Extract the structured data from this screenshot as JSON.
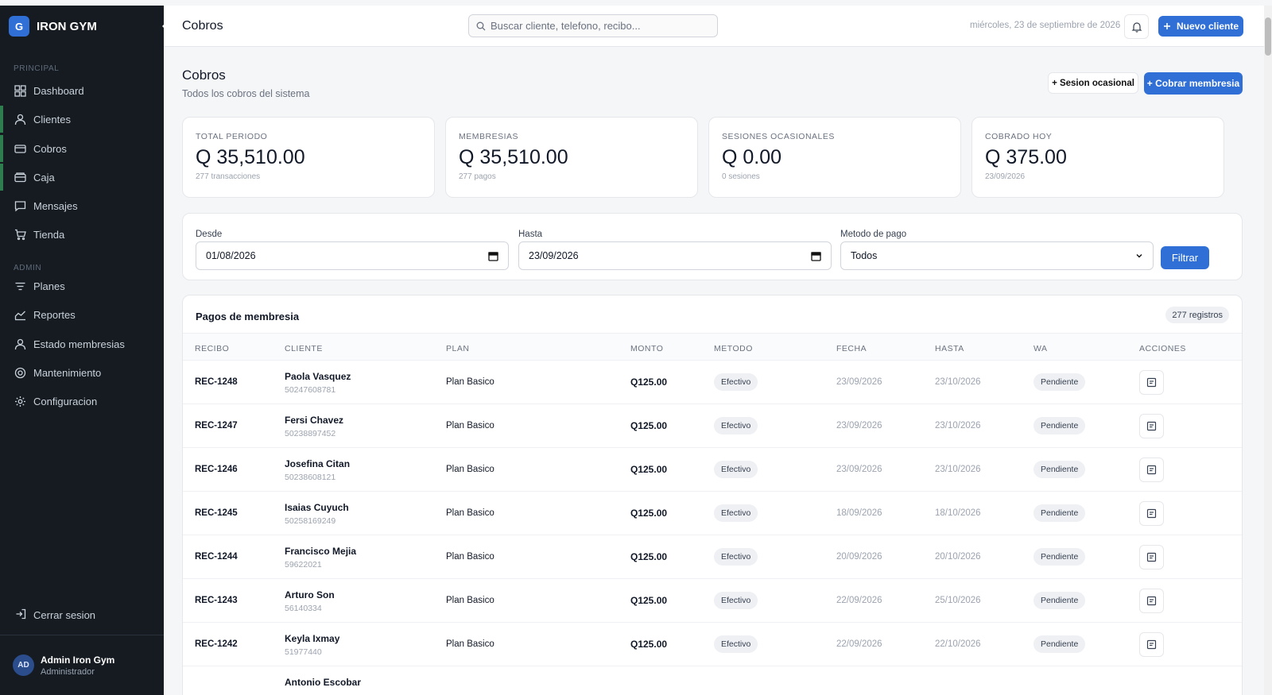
{
  "app": {
    "logo_letter": "G",
    "name": "IRON GYM"
  },
  "sidebar": {
    "section_principal": "PRINCIPAL",
    "section_admin": "ADMIN",
    "items": [
      {
        "label": "Dashboard",
        "icon": "grid-icon"
      },
      {
        "label": "Clientes",
        "icon": "user-icon"
      },
      {
        "label": "Cobros",
        "icon": "card-icon"
      },
      {
        "label": "Caja",
        "icon": "wallet-icon"
      },
      {
        "label": "Mensajes",
        "icon": "message-icon"
      },
      {
        "label": "Tienda",
        "icon": "cart-icon"
      }
    ],
    "admin_items": [
      {
        "label": "Planes",
        "icon": "filter-icon"
      },
      {
        "label": "Reportes",
        "icon": "chart-icon"
      },
      {
        "label": "Estado membresias",
        "icon": "user-icon"
      },
      {
        "label": "Mantenimiento",
        "icon": "target-icon"
      },
      {
        "label": "Configuracion",
        "icon": "gear-icon"
      }
    ],
    "logout": "Cerrar sesion",
    "user": {
      "initials": "AD",
      "name": "Admin Iron Gym",
      "role": "Administrador"
    }
  },
  "topbar": {
    "title": "Cobros",
    "search_placeholder": "Buscar cliente, telefono, recibo...",
    "date": "miércoles, 23 de septiembre de 2026",
    "new_client": "Nuevo cliente"
  },
  "page": {
    "title": "Cobros",
    "subtitle": "Todos los cobros del sistema",
    "btn_sesion": "+ Sesion ocasional",
    "btn_cobrar": "+ Cobrar membresia"
  },
  "stats": [
    {
      "label": "TOTAL PERIODO",
      "value": "Q 35,510.00",
      "sub": "277 transacciones"
    },
    {
      "label": "MEMBRESIAS",
      "value": "Q 35,510.00",
      "sub": "277 pagos"
    },
    {
      "label": "SESIONES OCASIONALES",
      "value": "Q 0.00",
      "sub": "0 sesiones"
    },
    {
      "label": "COBRADO HOY",
      "value": "Q 375.00",
      "sub": "23/09/2026"
    }
  ],
  "filters": {
    "desde_label": "Desde",
    "desde_value": "01/08/2026",
    "hasta_label": "Hasta",
    "hasta_value": "23/09/2026",
    "metodo_label": "Metodo de pago",
    "metodo_value": "Todos",
    "filter_button": "Filtrar"
  },
  "table": {
    "title": "Pagos de membresia",
    "count": "277 registros",
    "headers": [
      "RECIBO",
      "CLIENTE",
      "PLAN",
      "MONTO",
      "METODO",
      "FECHA",
      "HASTA",
      "WA",
      "ACCIONES"
    ],
    "rows": [
      {
        "recibo": "REC-1248",
        "cliente": "Paola Vasquez",
        "telefono": "50247608781",
        "plan": "Plan Basico",
        "monto": "Q125.00",
        "metodo": "Efectivo",
        "fecha": "23/09/2026",
        "hasta": "23/10/2026",
        "wa": "Pendiente"
      },
      {
        "recibo": "REC-1247",
        "cliente": "Fersi Chavez",
        "telefono": "50238897452",
        "plan": "Plan Basico",
        "monto": "Q125.00",
        "metodo": "Efectivo",
        "fecha": "23/09/2026",
        "hasta": "23/10/2026",
        "wa": "Pendiente"
      },
      {
        "recibo": "REC-1246",
        "cliente": "Josefina Citan",
        "telefono": "50238608121",
        "plan": "Plan Basico",
        "monto": "Q125.00",
        "metodo": "Efectivo",
        "fecha": "23/09/2026",
        "hasta": "23/10/2026",
        "wa": "Pendiente"
      },
      {
        "recibo": "REC-1245",
        "cliente": "Isaias Cuyuch",
        "telefono": "50258169249",
        "plan": "Plan Basico",
        "monto": "Q125.00",
        "metodo": "Efectivo",
        "fecha": "18/09/2026",
        "hasta": "18/10/2026",
        "wa": "Pendiente"
      },
      {
        "recibo": "REC-1244",
        "cliente": "Francisco Mejia",
        "telefono": "59622021",
        "plan": "Plan Basico",
        "monto": "Q125.00",
        "metodo": "Efectivo",
        "fecha": "20/09/2026",
        "hasta": "20/10/2026",
        "wa": "Pendiente"
      },
      {
        "recibo": "REC-1243",
        "cliente": "Arturo Son",
        "telefono": "56140334",
        "plan": "Plan Basico",
        "monto": "Q125.00",
        "metodo": "Efectivo",
        "fecha": "22/09/2026",
        "hasta": "25/10/2026",
        "wa": "Pendiente"
      },
      {
        "recibo": "REC-1242",
        "cliente": "Keyla Ixmay",
        "telefono": "51977440",
        "plan": "Plan Basico",
        "monto": "Q125.00",
        "metodo": "Efectivo",
        "fecha": "22/09/2026",
        "hasta": "22/10/2026",
        "wa": "Pendiente"
      },
      {
        "recibo": "",
        "cliente": "Antonio Escobar",
        "telefono": "",
        "plan": "",
        "monto": "",
        "metodo": "",
        "fecha": "",
        "hasta": "",
        "wa": ""
      }
    ]
  },
  "colors": {
    "sidebar_bg": "#161b22",
    "primary": "#2f6fd6",
    "active_accent": "#2e7d4f"
  }
}
